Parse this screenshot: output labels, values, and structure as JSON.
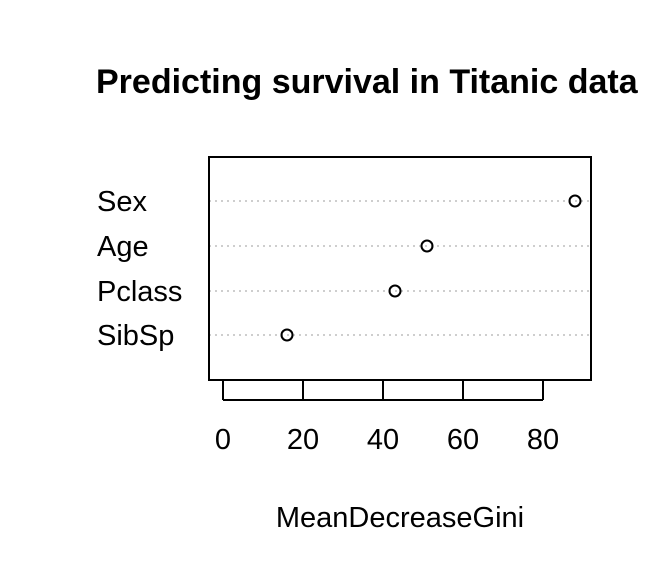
{
  "chart_data": {
    "type": "scatter",
    "title": "Predicting survival in Titanic data",
    "xlabel": "MeanDecreaseGini",
    "ylabel": "",
    "categories": [
      "Sex",
      "Age",
      "Pclass",
      "SibSp"
    ],
    "values": [
      88,
      51,
      43,
      16
    ],
    "xlim": [
      0,
      92
    ],
    "xticks": [
      0,
      20,
      40,
      60,
      80
    ],
    "grid": "dotted horizontal",
    "legend": "none",
    "colors": {
      "point": "#000000",
      "grid": "#bebebe",
      "frame": "#000000"
    }
  }
}
